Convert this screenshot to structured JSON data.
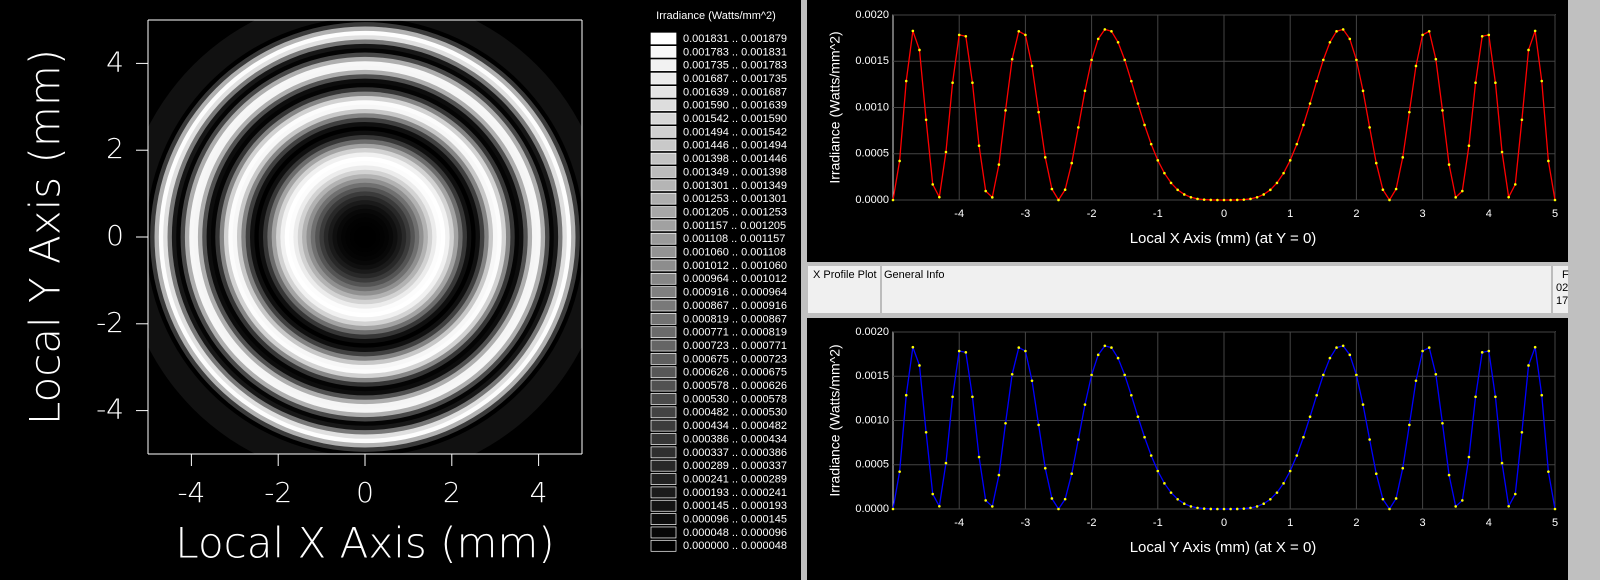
{
  "chart_data": [
    {
      "type": "image",
      "xlabel": "Local X Axis (mm)",
      "ylabel": "Local Y Axis (mm)",
      "xlim": [
        -5,
        5
      ],
      "ylim": [
        -5,
        5
      ],
      "xticks": [
        -4,
        -2,
        0,
        2,
        4
      ],
      "yticks": [
        -4,
        -2,
        0,
        2,
        4
      ],
      "legend_title": "Irradiance (Watts/mm^2)",
      "legend_labels": [
        "0.001831 .. 0.001879",
        "0.001783 .. 0.001831",
        "0.001735 .. 0.001783",
        "0.001687 .. 0.001735",
        "0.001639 .. 0.001687",
        "0.001590 .. 0.001639",
        "0.001542 .. 0.001590",
        "0.001494 .. 0.001542",
        "0.001446 .. 0.001494",
        "0.001398 .. 0.001446",
        "0.001349 .. 0.001398",
        "0.001301 .. 0.001349",
        "0.001253 .. 0.001301",
        "0.001205 .. 0.001253",
        "0.001157 .. 0.001205",
        "0.001108 .. 0.001157",
        "0.001060 .. 0.001108",
        "0.001012 .. 0.001060",
        "0.000964 .. 0.001012",
        "0.000916 .. 0.000964",
        "0.000867 .. 0.000916",
        "0.000819 .. 0.000867",
        "0.000771 .. 0.000819",
        "0.000723 .. 0.000771",
        "0.000675 .. 0.000723",
        "0.000626 .. 0.000675",
        "0.000578 .. 0.000626",
        "0.000530 .. 0.000578",
        "0.000482 .. 0.000530",
        "0.000434 .. 0.000482",
        "0.000386 .. 0.000434",
        "0.000337 .. 0.000386",
        "0.000289 .. 0.000337",
        "0.000241 .. 0.000289",
        "0.000193 .. 0.000241",
        "0.000145 .. 0.000193",
        "0.000096 .. 0.000145",
        "0.000048 .. 0.000096",
        "0.000000 .. 0.000048"
      ]
    },
    {
      "type": "line",
      "xlabel": "Local X Axis (mm) (at Y = 0)",
      "ylabel": "Irradiance (Watts/mm^2)",
      "color": "#ff0000",
      "marker_color": "#ffff00",
      "grid": true,
      "xlim": [
        -5,
        5
      ],
      "ylim": [
        0,
        0.002
      ],
      "xticks": [
        -4,
        -3,
        -2,
        -1,
        0,
        1,
        2,
        3,
        4,
        5
      ],
      "yticks": [
        {
          "value": 0,
          "label": "0.0000"
        },
        {
          "value": 0.0005,
          "label": "0.0005"
        },
        {
          "value": 0.001,
          "label": "0.0010"
        },
        {
          "value": 0.0015,
          "label": "0.0015"
        },
        {
          "value": 0.002,
          "label": "0.0020"
        }
      ],
      "x": [
        -5,
        -4.9,
        -4.8,
        -4.7,
        -4.6,
        -4.5,
        -4.4,
        -4.3,
        -4.2,
        -4.1,
        -4,
        -3.9,
        -3.8,
        -3.7,
        -3.6,
        -3.5,
        -3.4,
        -3.3,
        -3.2,
        -3.1,
        -3,
        -2.9,
        -2.8,
        -2.7,
        -2.6,
        -2.5,
        -2.4,
        -2.3,
        -2.2,
        -2.1,
        -2,
        -1.9,
        -1.8,
        -1.7,
        -1.6,
        -1.5,
        -1.4,
        -1.3,
        -1.2,
        -1.1,
        -1,
        -0.9,
        -0.8,
        -0.7,
        -0.6,
        -0.5,
        -0.4,
        -0.3,
        -0.2,
        -0.1,
        0,
        0.1,
        0.2,
        0.3,
        0.4,
        0.5,
        0.6,
        0.7,
        0.8,
        0.9,
        1,
        1.1,
        1.2,
        1.3,
        1.4,
        1.5,
        1.6,
        1.7,
        1.8,
        1.9,
        2,
        2.1,
        2.2,
        2.3,
        2.4,
        2.5,
        2.6,
        2.7,
        2.8,
        2.9,
        3,
        3.1,
        3.2,
        3.3,
        3.4,
        3.5,
        3.6,
        3.7,
        3.8,
        3.9,
        4,
        4.1,
        4.2,
        4.3,
        4.4,
        4.5,
        4.6,
        4.7,
        4.8,
        4.9,
        5
      ],
      "values": [
        0,
        0.000422,
        0.001286,
        0.001828,
        0.001622,
        0.000867,
        0.000169,
        3.1e-05,
        0.000519,
        0.001268,
        0.001785,
        0.00177,
        0.001268,
        0.000587,
        9.7e-05,
        2.9e-05,
        0.000383,
        0.000969,
        0.001522,
        0.001824,
        0.001785,
        0.001449,
        0.00095,
        0.000461,
        0.000119,
        0,
        0.000111,
        0.000399,
        0.000785,
        0.00118,
        0.001515,
        0.001742,
        0.001844,
        0.001824,
        0.001705,
        0.001515,
        0.001285,
        0.001043,
        0.000811,
        0.000604,
        0.000429,
        0.00029,
        0.000185,
        0.00011,
        5.99e-05,
        2.91e-05,
        1.19e-05,
        3.8e-06,
        7e-07,
        0,
        0,
        0,
        7e-07,
        3.8e-06,
        1.19e-05,
        2.91e-05,
        5.99e-05,
        0.00011,
        0.000185,
        0.00029,
        0.000429,
        0.000604,
        0.000811,
        0.001043,
        0.001285,
        0.001515,
        0.001705,
        0.001824,
        0.001844,
        0.001742,
        0.001515,
        0.00118,
        0.000785,
        0.000399,
        0.000111,
        0,
        0.000119,
        0.000461,
        0.00095,
        0.001449,
        0.001785,
        0.001824,
        0.001522,
        0.000969,
        0.000383,
        2.9e-05,
        9.7e-05,
        0.000587,
        0.001268,
        0.00177,
        0.001785,
        0.001268,
        0.000519,
        3.1e-05,
        0.000169,
        0.000867,
        0.001622,
        0.001828,
        0.001286,
        0.000422,
        0
      ]
    },
    {
      "type": "line",
      "xlabel": "Local Y Axis (mm) (at X = 0)",
      "ylabel": "Irradiance (Watts/mm^2)",
      "color": "#0000ff",
      "marker_color": "#ffff00",
      "grid": true,
      "xlim": [
        -5,
        5
      ],
      "ylim": [
        0,
        0.002
      ],
      "xticks": [
        -4,
        -3,
        -2,
        -1,
        0,
        1,
        2,
        3,
        4,
        5
      ],
      "yticks": [
        {
          "value": 0,
          "label": "0.0000"
        },
        {
          "value": 0.0005,
          "label": "0.0005"
        },
        {
          "value": 0.001,
          "label": "0.0010"
        },
        {
          "value": 0.0015,
          "label": "0.0015"
        },
        {
          "value": 0.002,
          "label": "0.0020"
        }
      ],
      "x": [
        -5,
        -4.9,
        -4.8,
        -4.7,
        -4.6,
        -4.5,
        -4.4,
        -4.3,
        -4.2,
        -4.1,
        -4,
        -3.9,
        -3.8,
        -3.7,
        -3.6,
        -3.5,
        -3.4,
        -3.3,
        -3.2,
        -3.1,
        -3,
        -2.9,
        -2.8,
        -2.7,
        -2.6,
        -2.5,
        -2.4,
        -2.3,
        -2.2,
        -2.1,
        -2,
        -1.9,
        -1.8,
        -1.7,
        -1.6,
        -1.5,
        -1.4,
        -1.3,
        -1.2,
        -1.1,
        -1,
        -0.9,
        -0.8,
        -0.7,
        -0.6,
        -0.5,
        -0.4,
        -0.3,
        -0.2,
        -0.1,
        0,
        0.1,
        0.2,
        0.3,
        0.4,
        0.5,
        0.6,
        0.7,
        0.8,
        0.9,
        1,
        1.1,
        1.2,
        1.3,
        1.4,
        1.5,
        1.6,
        1.7,
        1.8,
        1.9,
        2,
        2.1,
        2.2,
        2.3,
        2.4,
        2.5,
        2.6,
        2.7,
        2.8,
        2.9,
        3,
        3.1,
        3.2,
        3.3,
        3.4,
        3.5,
        3.6,
        3.7,
        3.8,
        3.9,
        4,
        4.1,
        4.2,
        4.3,
        4.4,
        4.5,
        4.6,
        4.7,
        4.8,
        4.9,
        5
      ],
      "values": [
        0,
        0.000422,
        0.001286,
        0.001828,
        0.001622,
        0.000867,
        0.000169,
        3.1e-05,
        0.000519,
        0.001268,
        0.001785,
        0.00177,
        0.001268,
        0.000587,
        9.7e-05,
        2.9e-05,
        0.000383,
        0.000969,
        0.001522,
        0.001824,
        0.001785,
        0.001449,
        0.00095,
        0.000461,
        0.000119,
        0,
        0.000111,
        0.000399,
        0.000785,
        0.00118,
        0.001515,
        0.001742,
        0.001844,
        0.001824,
        0.001705,
        0.001515,
        0.001285,
        0.001043,
        0.000811,
        0.000604,
        0.000429,
        0.00029,
        0.000185,
        0.00011,
        5.99e-05,
        2.91e-05,
        1.19e-05,
        3.8e-06,
        7e-07,
        0,
        0,
        0,
        7e-07,
        3.8e-06,
        1.19e-05,
        2.91e-05,
        5.99e-05,
        0.00011,
        0.000185,
        0.00029,
        0.000429,
        0.000604,
        0.000811,
        0.001043,
        0.001285,
        0.001515,
        0.001705,
        0.001824,
        0.001844,
        0.001742,
        0.001515,
        0.00118,
        0.000785,
        0.000399,
        0.000111,
        0,
        0.000119,
        0.000461,
        0.00095,
        0.001449,
        0.001785,
        0.001824,
        0.001522,
        0.000969,
        0.000383,
        2.9e-05,
        9.7e-05,
        0.000587,
        0.001268,
        0.00177,
        0.001785,
        0.001268,
        0.000519,
        3.1e-05,
        0.000169,
        0.000867,
        0.001622,
        0.001828,
        0.001286,
        0.000422,
        0
      ]
    }
  ],
  "info_bar": {
    "tabs": [
      "X Profile Plot",
      "General Info"
    ],
    "cutoff": [
      "F",
      "02",
      "17"
    ]
  }
}
